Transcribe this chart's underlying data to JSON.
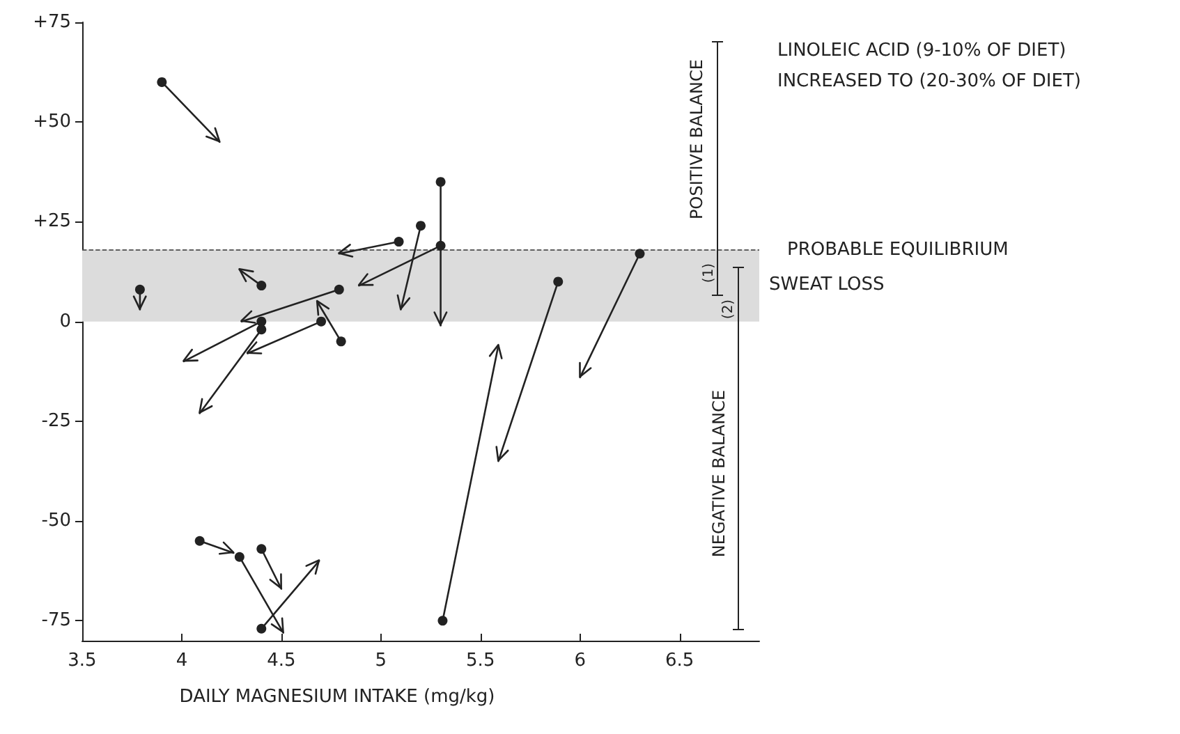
{
  "chart_data": {
    "type": "line",
    "xlabel": "DAILY MAGNESIUM INTAKE (mg/kg)",
    "xlim": [
      3.5,
      6.9
    ],
    "xticks": [
      3.5,
      4,
      4.5,
      5,
      5.5,
      6,
      6.5
    ],
    "ylim": [
      -80,
      75
    ],
    "yticks": [
      {
        "value": 75,
        "label": "+75"
      },
      {
        "value": 50,
        "label": "+50"
      },
      {
        "value": 25,
        "label": "+25"
      },
      0,
      -25,
      -50,
      -75
    ],
    "grid": false,
    "marker": "circle",
    "series": [
      {
        "color": "#222222",
        "x": [
          3.9,
          4.19
        ],
        "values": [
          60,
          45
        ]
      },
      {
        "color": "#222222",
        "x": [
          5.09,
          4.79
        ],
        "values": [
          20,
          17
        ]
      },
      {
        "color": "#222222",
        "x": [
          5.2,
          5.1
        ],
        "values": [
          24,
          3
        ]
      },
      {
        "color": "#222222",
        "x": [
          5.3,
          5.3
        ],
        "values": [
          35,
          -1
        ]
      },
      {
        "color": "#222222",
        "x": [
          5.3,
          4.89
        ],
        "values": [
          19,
          9
        ]
      },
      {
        "color": "#222222",
        "x": [
          4.79,
          4.3
        ],
        "values": [
          8,
          0
        ]
      },
      {
        "color": "#222222",
        "x": [
          4.4,
          4.29
        ],
        "values": [
          9,
          13
        ]
      },
      {
        "color": "#222222",
        "x": [
          3.79,
          3.79
        ],
        "values": [
          8,
          3
        ]
      },
      {
        "color": "#222222",
        "x": [
          4.4,
          4.01
        ],
        "values": [
          0,
          -10
        ]
      },
      {
        "color": "#222222",
        "x": [
          4.4,
          4.09
        ],
        "values": [
          -2,
          -23
        ]
      },
      {
        "color": "#222222",
        "x": [
          4.7,
          4.33
        ],
        "values": [
          0,
          -8
        ]
      },
      {
        "color": "#222222",
        "x": [
          4.8,
          4.68
        ],
        "values": [
          -5,
          5
        ]
      },
      {
        "color": "#222222",
        "x": [
          6.3,
          6.0
        ],
        "values": [
          17,
          -14
        ]
      },
      {
        "color": "#222222",
        "x": [
          5.89,
          5.59
        ],
        "values": [
          10,
          -35
        ]
      },
      {
        "color": "#222222",
        "x": [
          5.31,
          5.59
        ],
        "values": [
          -75,
          -6
        ]
      },
      {
        "color": "#222222",
        "x": [
          4.09,
          4.26
        ],
        "values": [
          -55,
          -58
        ]
      },
      {
        "color": "#222222",
        "x": [
          4.29,
          4.51
        ],
        "values": [
          -59,
          -78
        ]
      },
      {
        "color": "#222222",
        "x": [
          4.4,
          4.5
        ],
        "values": [
          -57,
          -67
        ]
      },
      {
        "color": "#222222",
        "x": [
          4.4,
          4.69
        ],
        "values": [
          -77,
          -60
        ]
      }
    ],
    "bands": [
      {
        "axis": "y",
        "from": 0,
        "to": 18,
        "color": "#dcdcdc"
      }
    ],
    "ref_lines": [
      {
        "axis": "y",
        "value": 18,
        "label": "PROBABLE EQUILIBRIUM",
        "line_style": "dashed"
      }
    ],
    "annotations": [
      "LINOLEIC ACID (9-10% OF DIET)",
      "INCREASED TO (20-30% OF DIET)",
      "POSITIVE BALANCE",
      "NEGATIVE BALANCE",
      "SWEAT LOSS",
      "(1)",
      "(2)"
    ]
  }
}
